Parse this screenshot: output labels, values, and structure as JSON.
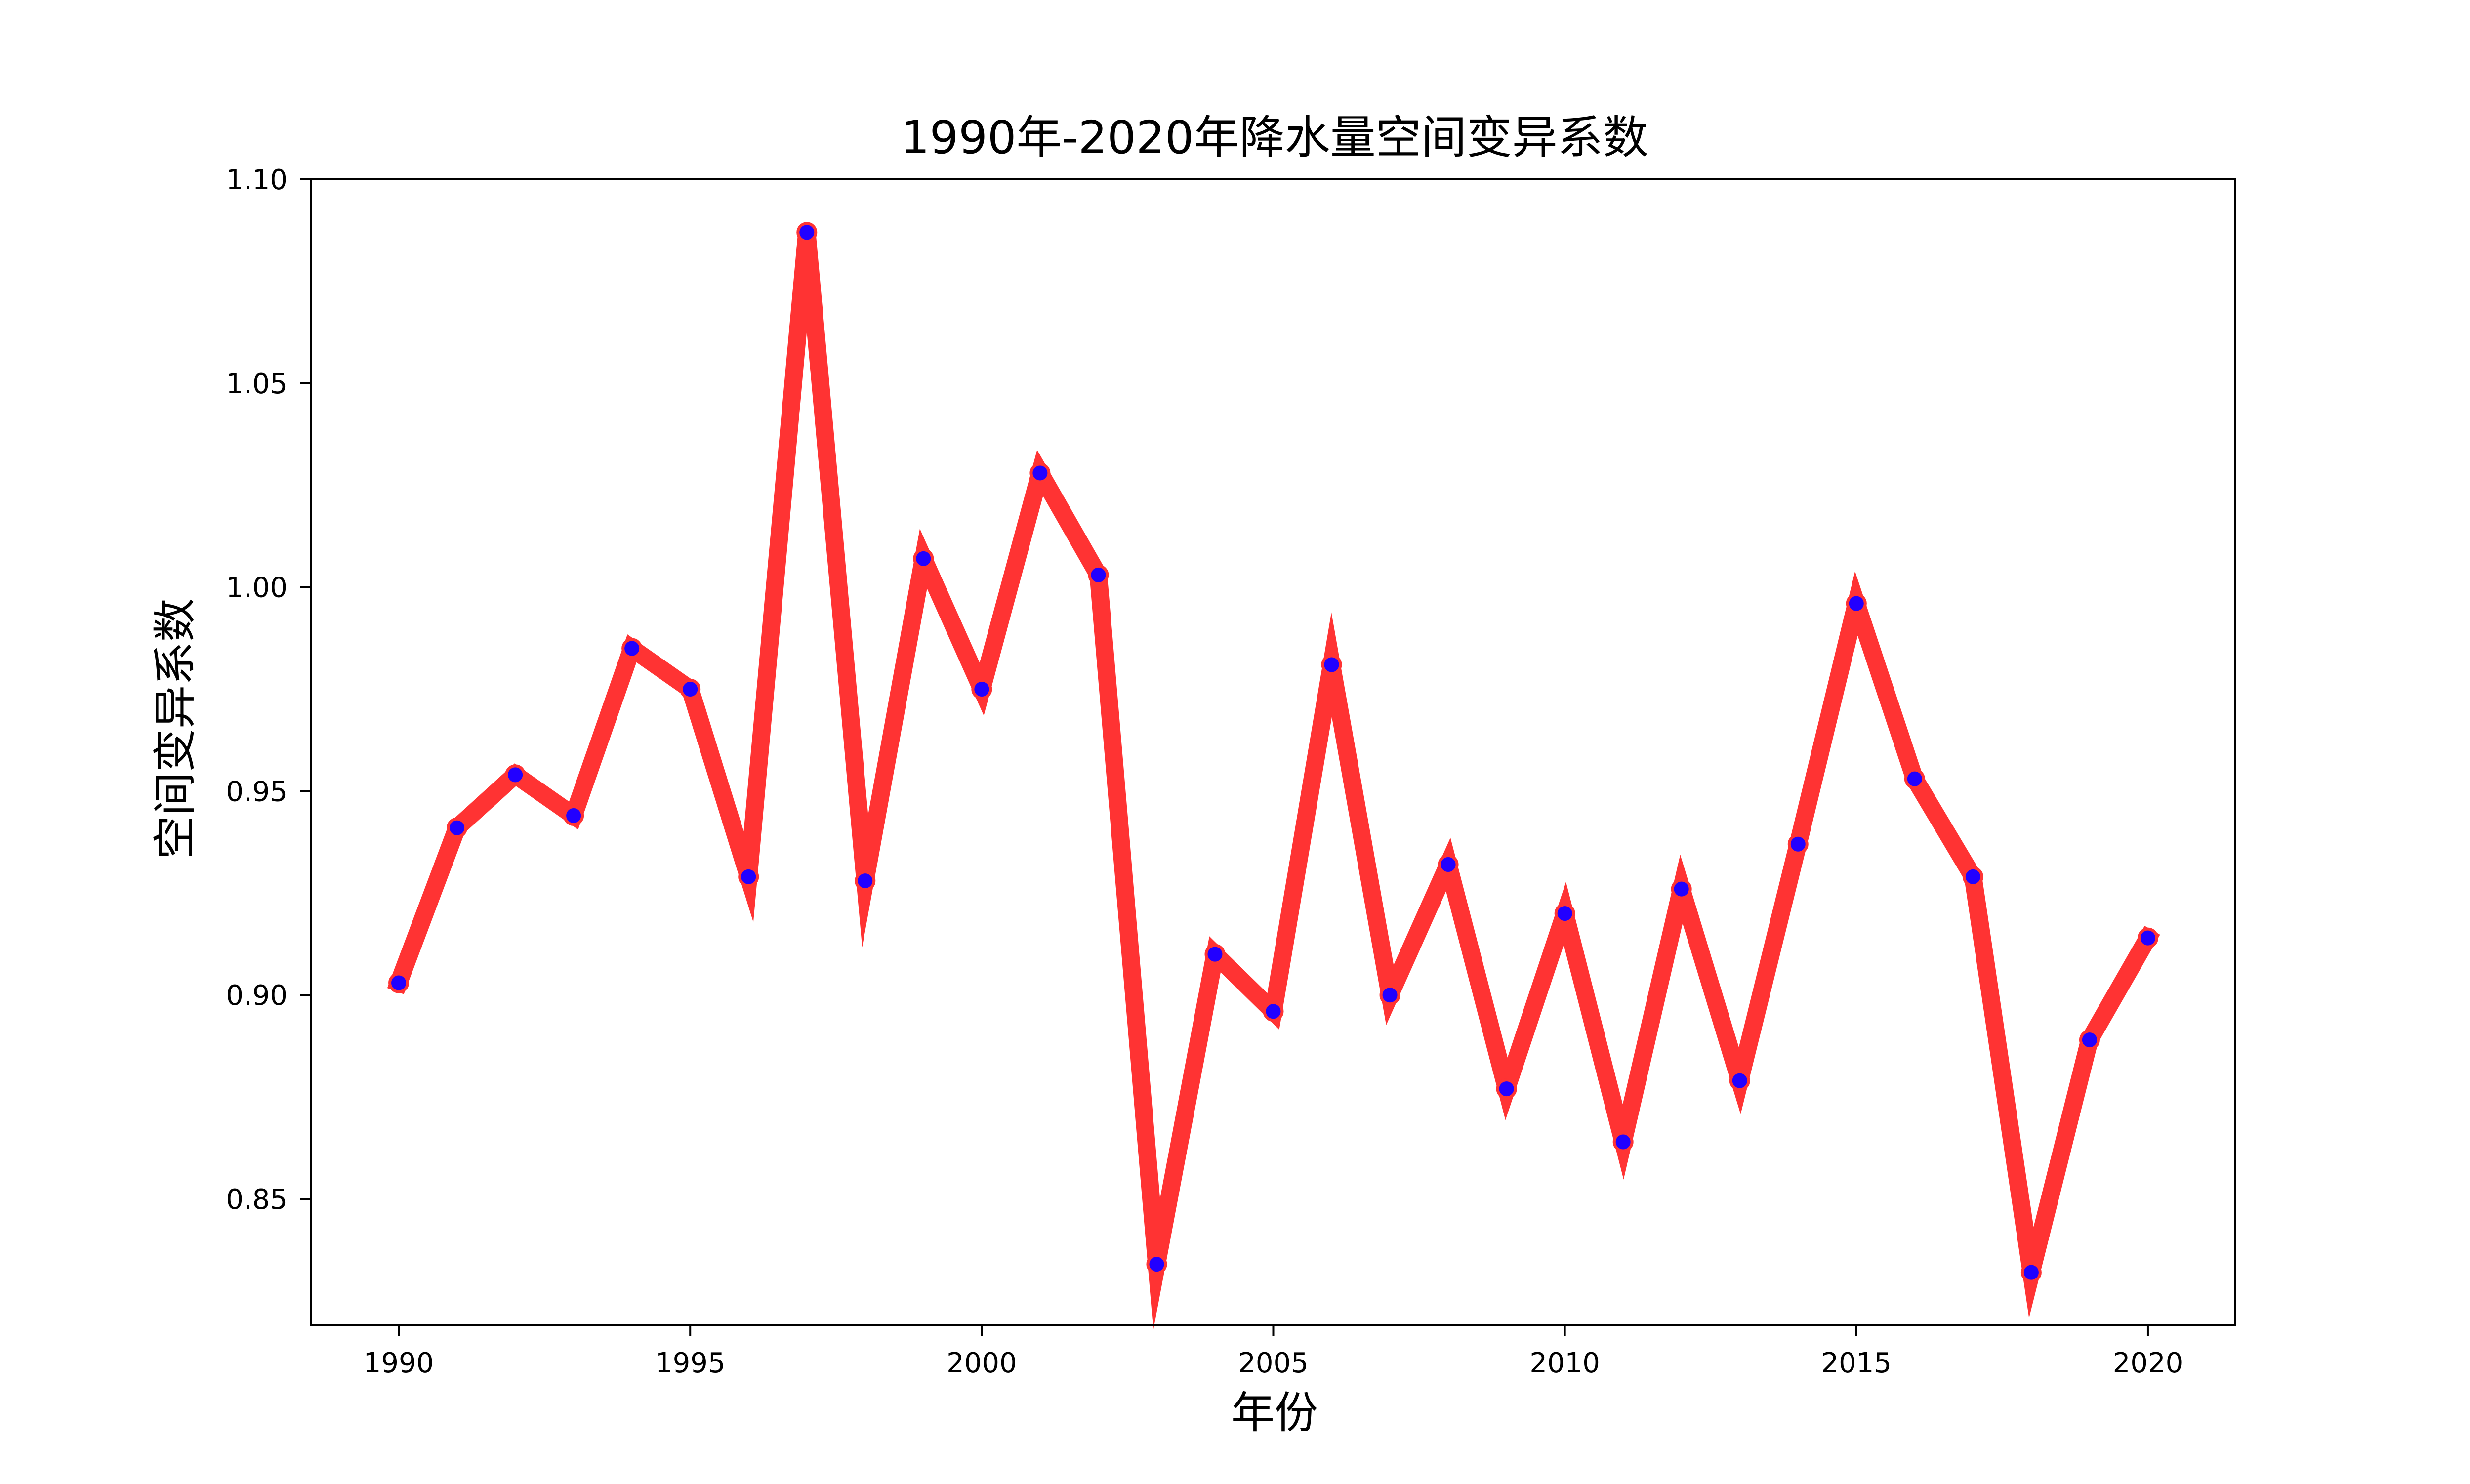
{
  "chart_data": {
    "type": "line",
    "title": "1990年-2020年降水量空间变异系数",
    "xlabel": "年份",
    "ylabel": "空间变异系数",
    "xlim": [
      1988.5,
      2021.5
    ],
    "ylim": [
      0.819,
      1.1
    ],
    "grid": false,
    "x_ticks": [
      1990,
      1995,
      2000,
      2005,
      2010,
      2015,
      2020
    ],
    "x_tick_labels": [
      "1990",
      "1995",
      "2000",
      "2005",
      "2010",
      "2015",
      "2020"
    ],
    "y_ticks": [
      0.85,
      0.9,
      0.95,
      1.0,
      1.05,
      1.1
    ],
    "y_tick_labels": [
      "0.85",
      "0.90",
      "0.95",
      "1.00",
      "1.05",
      "1.10"
    ],
    "line_color": "#ff3333",
    "marker_color": "#2200ff",
    "marker_edge_color": "#ff3333",
    "series": [
      {
        "x": [
          1990,
          1991,
          1992,
          1993,
          1994,
          1995,
          1996,
          1997,
          1998,
          1999,
          2000,
          2001,
          2002,
          2003,
          2004,
          2005,
          2006,
          2007,
          2008,
          2009,
          2010,
          2011,
          2012,
          2013,
          2014,
          2015,
          2016,
          2017,
          2018,
          2019,
          2020
        ],
        "values": [
          0.903,
          0.941,
          0.954,
          0.944,
          0.985,
          0.975,
          0.929,
          1.087,
          0.928,
          1.007,
          0.975,
          1.028,
          1.003,
          0.834,
          0.91,
          0.896,
          0.981,
          0.9,
          0.932,
          0.877,
          0.92,
          0.864,
          0.926,
          0.879,
          0.937,
          0.996,
          0.953,
          0.929,
          0.832,
          0.889,
          0.914
        ]
      }
    ]
  }
}
